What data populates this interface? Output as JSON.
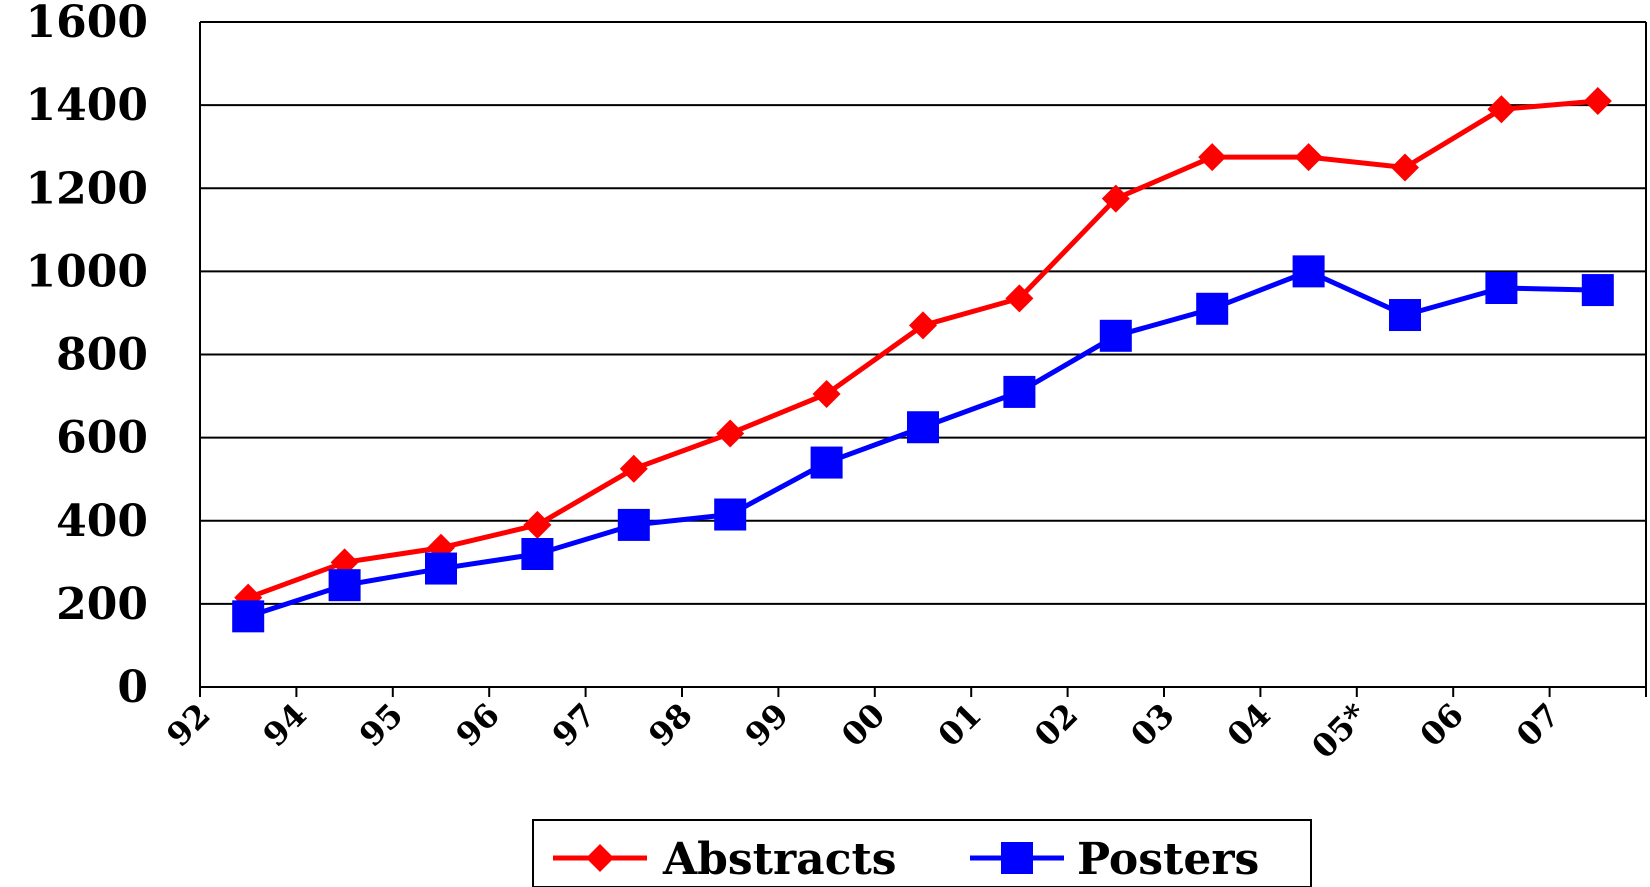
{
  "chart_data": {
    "type": "line",
    "categories": [
      "92",
      "94",
      "95",
      "96",
      "97",
      "98",
      "99",
      "00",
      "01",
      "02",
      "03",
      "04",
      "05*",
      "06",
      "07"
    ],
    "yticks": [
      "0",
      "200",
      "400",
      "600",
      "800",
      "1000",
      "1200",
      "1400",
      "1600"
    ],
    "ylim": [
      0,
      1600
    ],
    "grid": true,
    "legend_position": "bottom",
    "series": [
      {
        "name": "Abstracts",
        "color": "#ff0000",
        "marker": "diamond",
        "values": [
          215,
          300,
          335,
          390,
          525,
          610,
          705,
          870,
          935,
          1175,
          1275,
          1275,
          1250,
          1390,
          1410
        ]
      },
      {
        "name": "Posters",
        "color": "#0000ff",
        "marker": "square",
        "values": [
          170,
          245,
          285,
          320,
          390,
          415,
          540,
          625,
          710,
          845,
          910,
          1000,
          895,
          960,
          955
        ]
      }
    ]
  }
}
